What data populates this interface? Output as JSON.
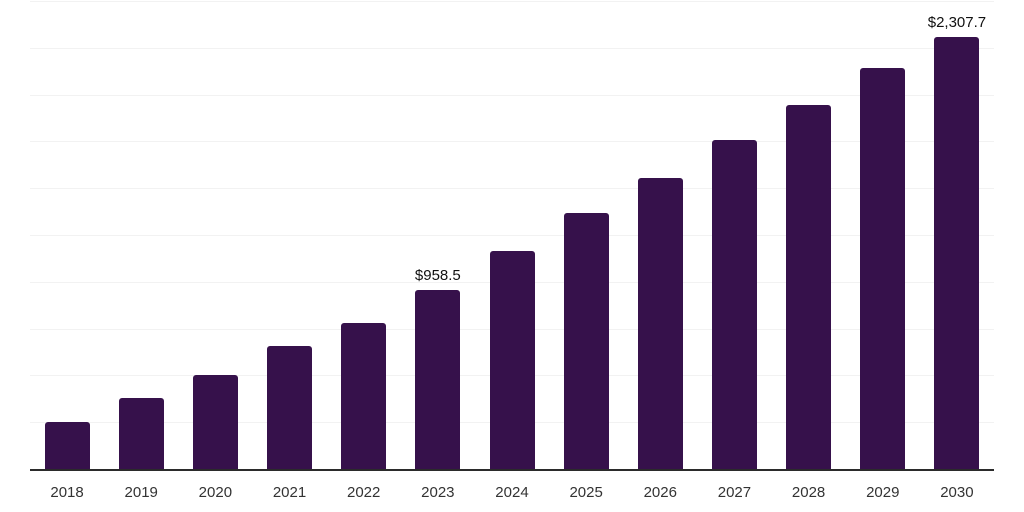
{
  "chart_data": {
    "type": "bar",
    "title": "",
    "xlabel": "",
    "ylabel": "",
    "categories": [
      "2018",
      "2019",
      "2020",
      "2021",
      "2022",
      "2023",
      "2024",
      "2025",
      "2026",
      "2027",
      "2028",
      "2029",
      "2030"
    ],
    "values": [
      253,
      382,
      500,
      655,
      779,
      958.5,
      1165,
      1367,
      1554,
      1756,
      1943,
      2140,
      2307.7
    ],
    "value_labels": [
      "",
      "",
      "",
      "",
      "",
      "$958.5",
      "",
      "",
      "",
      "",
      "",
      "",
      "$2,307.7"
    ],
    "ylim": [
      0,
      2500
    ],
    "gridline_step": 250,
    "grid": "horizontal",
    "legend": "none",
    "colors": {
      "bar": "#36114b",
      "gridline": "#f2f2f2",
      "axis_line": "#2b2b2b",
      "tick_label": "#333333",
      "value_label": "#111111",
      "background": "#ffffff"
    }
  }
}
